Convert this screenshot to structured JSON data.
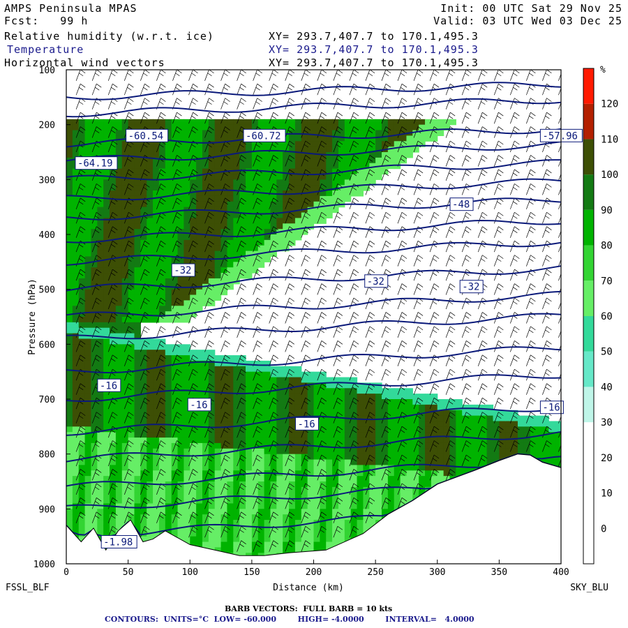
{
  "header": {
    "model": "AMPS Peninsula MPAS",
    "init": "Init: 00 UTC Sat 29 Nov 25",
    "fcst": "Fcst:   99 h",
    "valid": "Valid: 03 UTC Wed 03 Dec 25",
    "field1": "Relative humidity (w.r.t. ice)",
    "field2": "Temperature",
    "field3": "Horizontal wind vectors",
    "xy": "XY= 293.7,407.7 to 170.1,495.3"
  },
  "colors": {
    "contour": "#0b1a7a",
    "field2_text": "#1a1a8c",
    "scale": [
      "#ffffff",
      "#ffffff",
      "#ffffff",
      "#ffffff",
      "#bff5e8",
      "#66e8c8",
      "#33d99a",
      "#66ee66",
      "#33d433",
      "#00b300",
      "#137a13",
      "#3d4f05",
      "#b32000",
      "#ff1a00"
    ]
  },
  "chart_data": {
    "type": "contour",
    "xlabel": "Distance (km)",
    "ylabel": "Pressure (hPa)",
    "xlim": [
      0,
      400
    ],
    "ylim": [
      1000,
      100
    ],
    "xticks": [
      0,
      50,
      100,
      150,
      200,
      250,
      300,
      350,
      400
    ],
    "yticks": [
      100,
      200,
      300,
      400,
      500,
      600,
      700,
      800,
      900,
      1000
    ],
    "left_endpoint": "FSSL_BLF",
    "right_endpoint": "SKY_BLU",
    "colorbar": {
      "unit": "%",
      "ticks": [
        0,
        10,
        20,
        30,
        40,
        50,
        60,
        70,
        80,
        90,
        100,
        110,
        120
      ],
      "range": [
        -10,
        130
      ]
    },
    "contour_labels": [
      {
        "x": 50,
        "p": 225,
        "text": "-60.54"
      },
      {
        "x": 145,
        "p": 225,
        "text": "-60.72"
      },
      {
        "x": 385,
        "p": 225,
        "text": "-57.96"
      },
      {
        "x": 9,
        "p": 275,
        "text": "-64.19"
      },
      {
        "x": 312,
        "p": 350,
        "text": "-48"
      },
      {
        "x": 87,
        "p": 470,
        "text": "-32"
      },
      {
        "x": 243,
        "p": 490,
        "text": "-32"
      },
      {
        "x": 320,
        "p": 500,
        "text": "-32"
      },
      {
        "x": 27,
        "p": 680,
        "text": "-16"
      },
      {
        "x": 100,
        "p": 715,
        "text": "-16"
      },
      {
        "x": 187,
        "p": 750,
        "text": "-16"
      },
      {
        "x": 385,
        "p": 720,
        "text": "-16"
      },
      {
        "x": 30,
        "p": 965,
        "text": "-1.98"
      }
    ],
    "terrain_top_hPa": [
      [
        0,
        930
      ],
      [
        12,
        960
      ],
      [
        22,
        935
      ],
      [
        32,
        975
      ],
      [
        42,
        940
      ],
      [
        52,
        920
      ],
      [
        62,
        960
      ],
      [
        70,
        955
      ],
      [
        80,
        940
      ],
      [
        100,
        965
      ],
      [
        120,
        975
      ],
      [
        140,
        985
      ],
      [
        160,
        985
      ],
      [
        180,
        980
      ],
      [
        210,
        975
      ],
      [
        240,
        945
      ],
      [
        260,
        910
      ],
      [
        280,
        885
      ],
      [
        300,
        855
      ],
      [
        330,
        830
      ],
      [
        350,
        812
      ],
      [
        365,
        800
      ],
      [
        375,
        802
      ],
      [
        385,
        815
      ],
      [
        400,
        825
      ]
    ]
  },
  "footer": {
    "barb": "BARB VECTORS:  FULL BARB = 10 kts",
    "contours": "CONTOURS:  UNITS=°C  LOW= -60.000        HIGH= -4.0000        INTERVAL=   4.0000"
  }
}
